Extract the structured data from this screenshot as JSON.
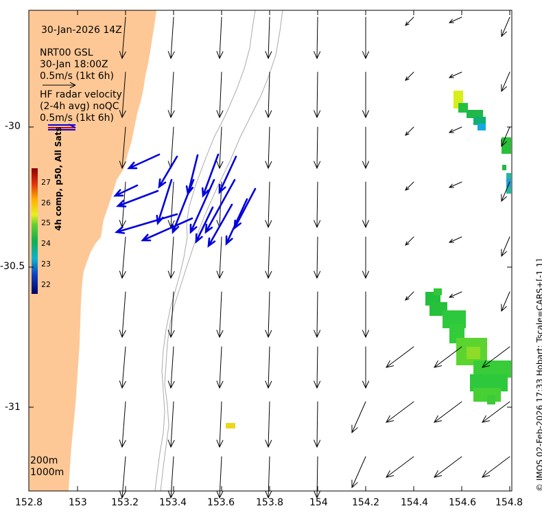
{
  "header": {
    "date": "30-Jan-2026 14Z",
    "model_name": "NRT00 GSL",
    "model_time": "30-Jan 18:00Z",
    "model_scale": "0.5m/s (1kt 6h)",
    "radar_line1": "HF radar velocity",
    "radar_line2": "(2-4h avg) noQC",
    "radar_scale": "0.5m/s (1kt 6h)"
  },
  "depth_labels": {
    "d200": "200m",
    "d1000": "1000m"
  },
  "colorbar": {
    "title": "4h comp, p50, All Sats",
    "ticks": [
      "27",
      "26",
      "25",
      "24",
      "23",
      "22"
    ]
  },
  "credit": "© IMOS 02-Feb-2026 17:33 Hobart; Tscale=CARS+[-1 1]",
  "axes": {
    "x_ticks": [
      "152.8",
      "153",
      "153.2",
      "153.4",
      "153.6",
      "153.8",
      "154",
      "154.2",
      "154.4",
      "154.6",
      "154.8"
    ],
    "y_ticks": [
      "-30",
      "-30.5",
      "-31"
    ]
  },
  "colors": {
    "land": "#fdc896",
    "hf_arrow": "#0000dd",
    "model_arrow": "#000000",
    "isobath": "#a0a0a0"
  }
}
